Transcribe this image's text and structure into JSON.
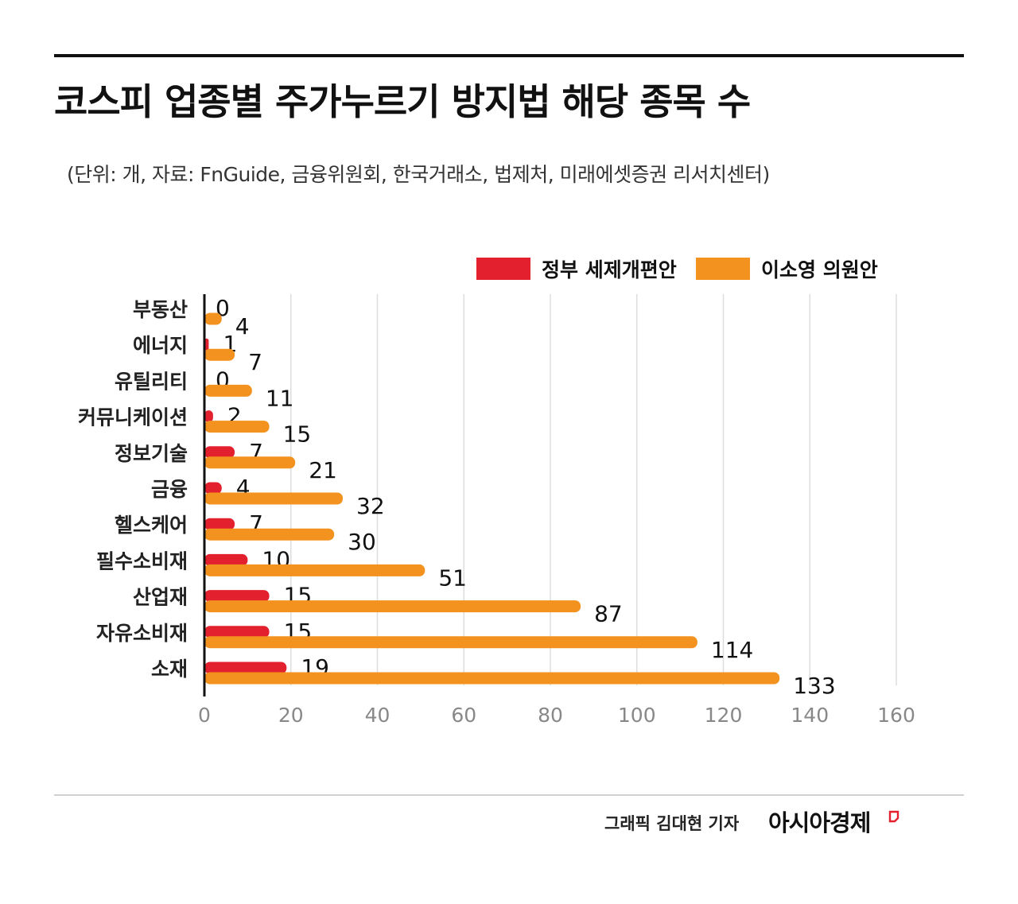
{
  "title": "코스피 업종별 주가누르기 방지법 해당 종목 수",
  "subtitle": "(단위: 개, 자료: FnGuide, 금융위원회, 한국거래소, 법제처, 미래에셋증권 리서치센터)",
  "legend": {
    "gov_label": "정부 세제개편안",
    "lee_label": "이소영 의원안"
  },
  "colors": {
    "gov": "#e3202e",
    "lee": "#f3921e",
    "grid": "#dddddd",
    "axis": "#111111",
    "tick": "#888888"
  },
  "chart_data": {
    "type": "bar",
    "orientation": "horizontal",
    "categories": [
      "부동산",
      "에너지",
      "유틸리티",
      "커뮤니케이션",
      "정보기술",
      "금융",
      "헬스케어",
      "필수소비재",
      "산업재",
      "자유소비재",
      "소재"
    ],
    "series": [
      {
        "name": "정부 세제개편안",
        "values": [
          0,
          1,
          0,
          2,
          7,
          4,
          7,
          10,
          15,
          15,
          19
        ]
      },
      {
        "name": "이소영 의원안",
        "values": [
          4,
          7,
          11,
          15,
          21,
          32,
          30,
          51,
          87,
          114,
          133
        ]
      }
    ],
    "xlim": [
      0,
      160
    ],
    "xticks": [
      0,
      20,
      40,
      60,
      80,
      100,
      120,
      140,
      160
    ],
    "grid": true,
    "legend_position": "top-right"
  },
  "footer": {
    "credit": "그래픽  김대현 기자",
    "brand": "아시아경제"
  }
}
